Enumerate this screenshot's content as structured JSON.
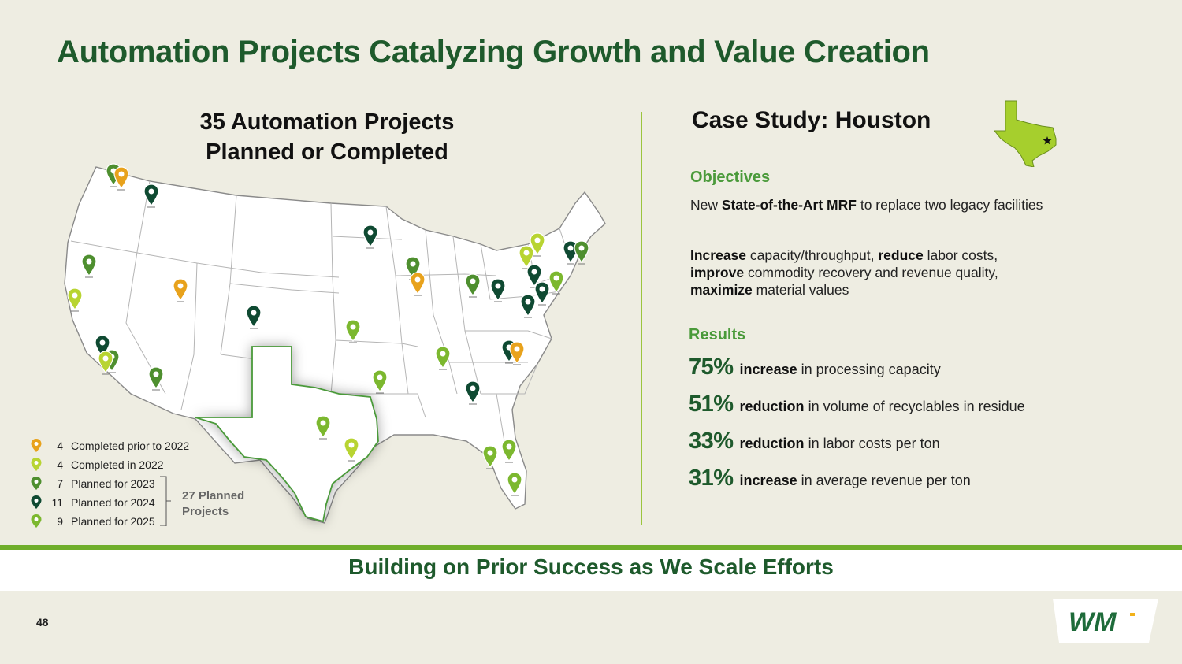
{
  "title": "Automation Projects Catalyzing Growth and Value Creation",
  "map_title_line1": "35 Automation Projects",
  "map_title_line2": "Planned or Completed",
  "legend": [
    {
      "count": "4",
      "label": "Completed prior to 2022",
      "color": "#e8a21c"
    },
    {
      "count": "4",
      "label": "Completed in 2022",
      "color": "#b8d432"
    },
    {
      "count": "7",
      "label": "Planned for 2023",
      "color": "#4e8f2f"
    },
    {
      "count": "11",
      "label": "Planned for 2024",
      "color": "#0f4a32"
    },
    {
      "count": "9",
      "label": "Planned for 2025",
      "color": "#7cb82f"
    }
  ],
  "planned_group_line1": "27 Planned",
  "planned_group_line2": "Projects",
  "case_study": {
    "title": "Case Study: Houston",
    "objectives_heading": "Objectives",
    "obj1_pre": "New ",
    "obj1_bold": "State-of-the-Art MRF",
    "obj1_post": " to replace two legacy facilities",
    "obj2_b1": "Increase",
    "obj2_t1": " capacity/throughput, ",
    "obj2_b2": "reduce",
    "obj2_t2": " labor costs, ",
    "obj2_b3": "improve",
    "obj2_t3": " commodity recovery and revenue quality, ",
    "obj2_b4": "maximize",
    "obj2_t4": " material values",
    "results_heading": "Results",
    "results": [
      {
        "pct": "75%",
        "bold": "increase",
        "text": " in processing capacity"
      },
      {
        "pct": "51%",
        "bold": "reduction",
        "text": " in volume of recyclables in residue"
      },
      {
        "pct": "33%",
        "bold": "reduction",
        "text": " in labor costs per ton"
      },
      {
        "pct": "31%",
        "bold": "increase",
        "text": " in average revenue per ton"
      }
    ]
  },
  "footer": "Building on Prior Success as We Scale Efforts",
  "page_number": "48",
  "logo_text": "WM",
  "colors": {
    "completed_prior_2022": "#e8a21c",
    "completed_2022": "#b8d432",
    "planned_2023": "#4e8f2f",
    "planned_2024": "#0f4a32",
    "planned_2025": "#7cb82f",
    "brand_green": "#1e5a2c"
  }
}
